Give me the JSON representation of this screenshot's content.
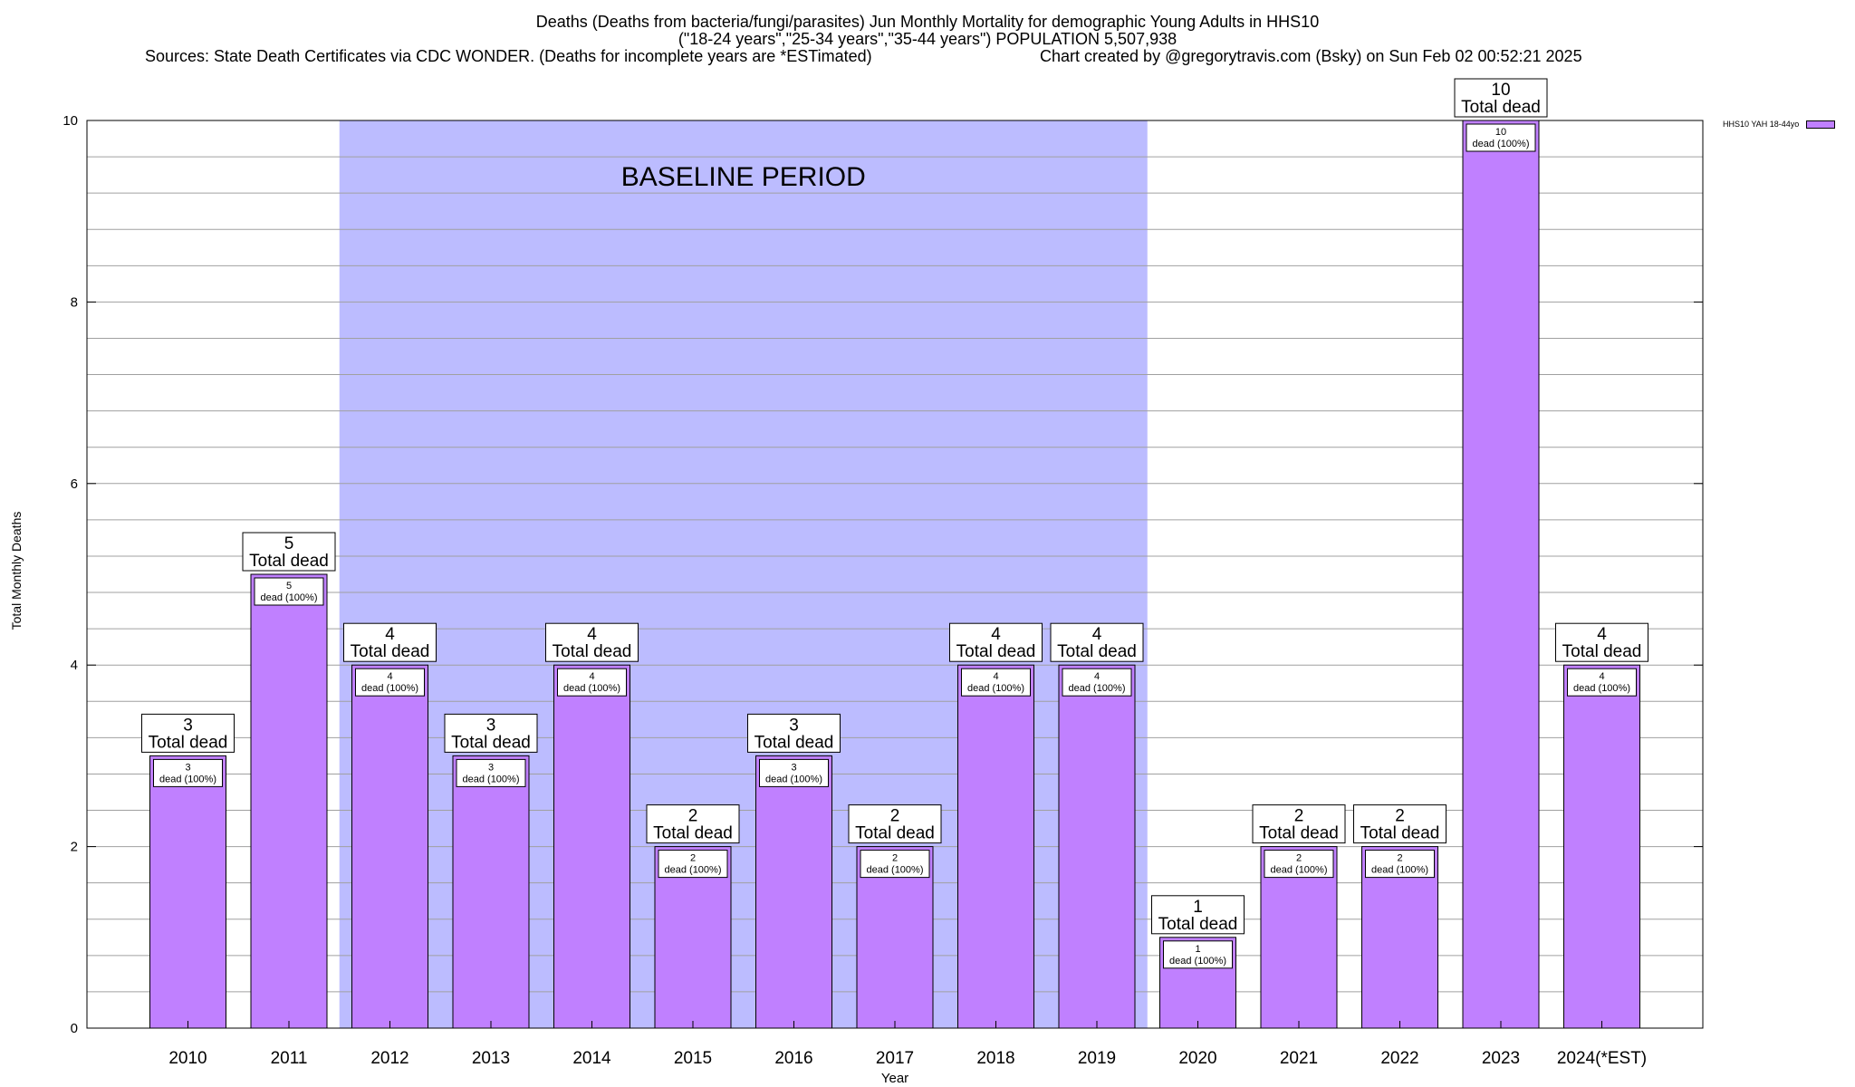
{
  "chart_data": {
    "type": "bar",
    "title_lines": [
      "Deaths (Deaths from bacteria/fungi/parasites) Jun Monthly Mortality for demographic Young Adults in HHS10",
      "(\"18-24 years\",\"25-34 years\",\"35-44 years\") POPULATION 5,507,938"
    ],
    "sources": "Sources: State Death Certificates via CDC WONDER. (Deaths for incomplete years are *ESTimated)",
    "credit": "Chart created by @gregorytravis.com (Bsky) on Sun Feb 02 00:52:21 2025",
    "xlabel": "Year",
    "ylabel": "Total Monthly Deaths",
    "ylim": [
      0,
      10
    ],
    "yticks": [
      0,
      2,
      4,
      6,
      8,
      10
    ],
    "categories": [
      "2010",
      "2011",
      "2012",
      "2013",
      "2014",
      "2015",
      "2016",
      "2017",
      "2018",
      "2019",
      "2020",
      "2021",
      "2022",
      "2023",
      "2024(*EST)"
    ],
    "series": [
      {
        "name": "HHS10 YAH 18-44yo",
        "values": [
          3,
          5,
          4,
          3,
          4,
          2,
          3,
          2,
          4,
          4,
          1,
          2,
          2,
          10,
          4
        ]
      }
    ],
    "top_label_suffix": "Total dead",
    "inner_label_suffix": "dead (100%)",
    "baseline": {
      "label": "BASELINE PERIOD",
      "from": "2012",
      "to": "2019"
    },
    "colors": {
      "bar": "#c080ff",
      "baseline": "#bcbcff",
      "grid": "#a0a0a0"
    },
    "grid": true,
    "legend_position": "top-right"
  }
}
